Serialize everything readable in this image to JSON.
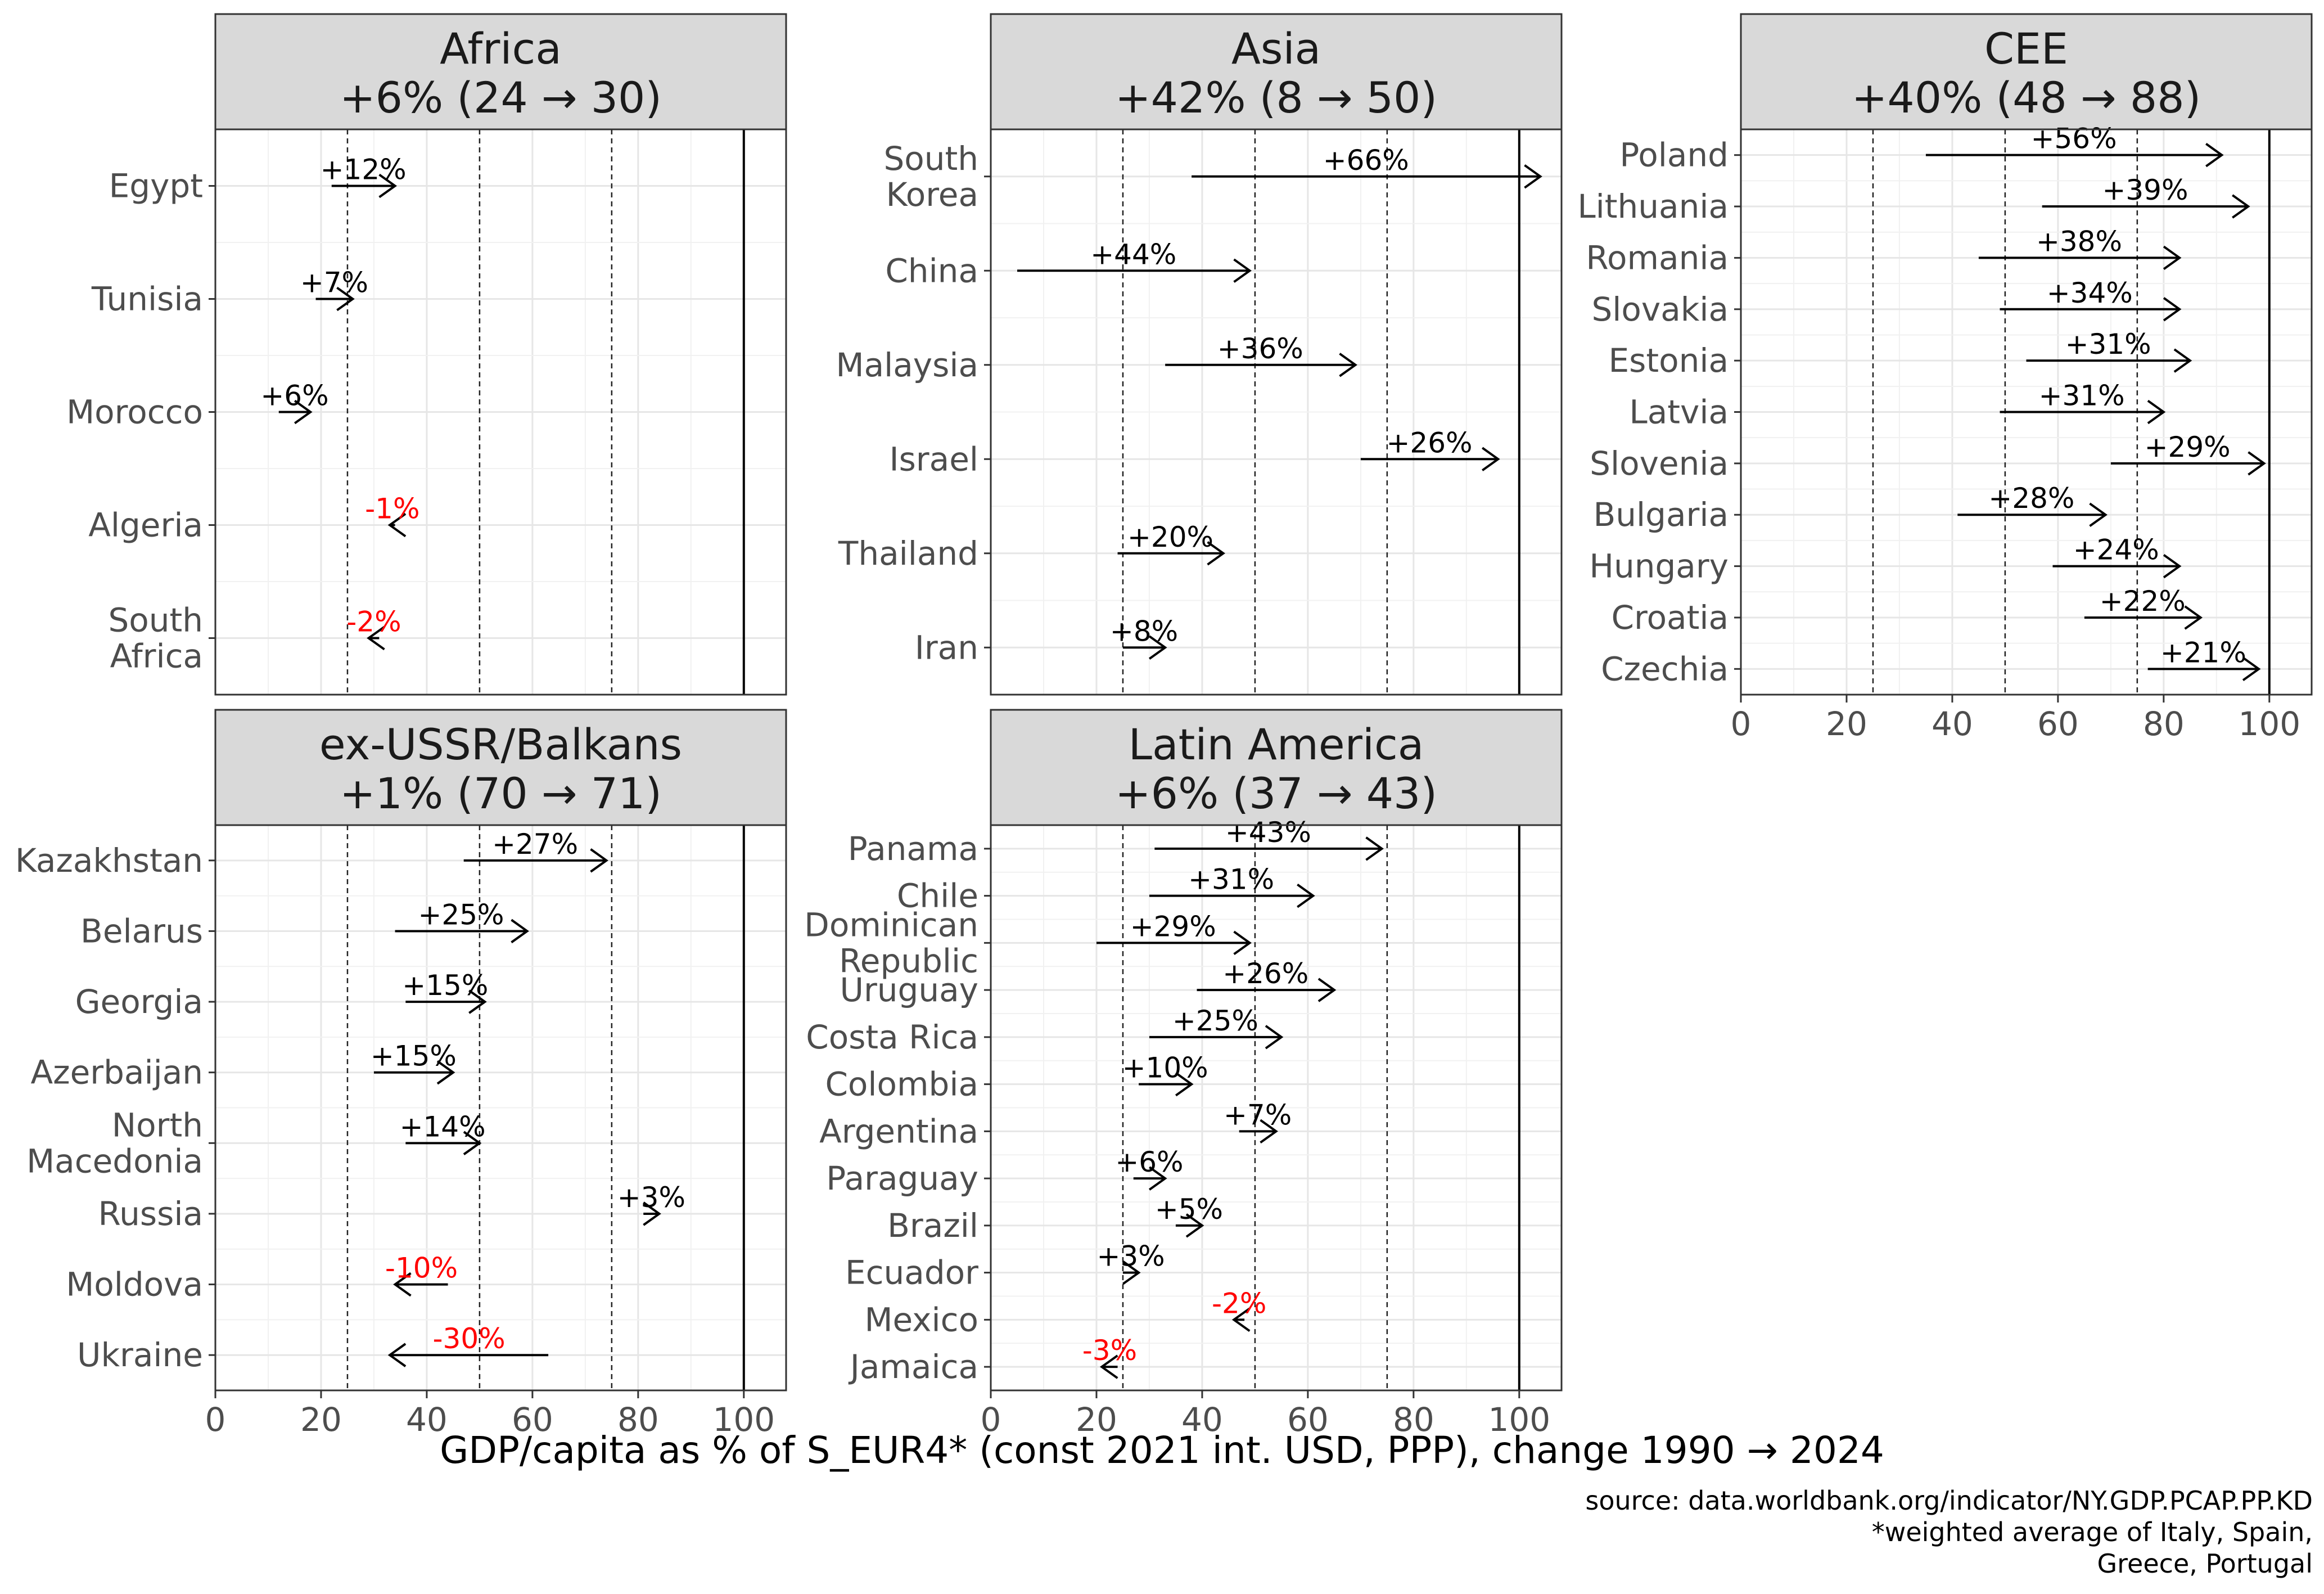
{
  "chart_data": {
    "type": "arrow-dumbbell (small multiples)",
    "xlabel": "GDP/capita as % of S_EUR4* (const 2021 int. USD, PPP), change 1990 → 2024",
    "x_ticks": [
      0,
      20,
      40,
      60,
      80,
      100
    ],
    "xlim": [
      0,
      108
    ],
    "reference_lines": {
      "dashed": [
        25,
        50,
        75
      ],
      "solid": [
        100
      ]
    },
    "source_lines": [
      "source: data.worldbank.org/indicator/NY.GDP.PCAP.PP.KD",
      "*weighted average of Italy, Spain,",
      "Greece, Portugal"
    ],
    "panels": [
      {
        "title": "Africa",
        "summary": "+6% (24 → 30)",
        "countries": [
          {
            "name": "Egypt",
            "start": 22,
            "end": 34,
            "label": "+12%"
          },
          {
            "name": "Tunisia",
            "start": 19,
            "end": 26,
            "label": "+7%"
          },
          {
            "name": "Morocco",
            "start": 12,
            "end": 18,
            "label": "+6%"
          },
          {
            "name": "Algeria",
            "start": 34,
            "end": 33,
            "label": "-1%"
          },
          {
            "name": "South\nAfrica",
            "start": 31,
            "end": 29,
            "label": "-2%"
          }
        ]
      },
      {
        "title": "Asia",
        "summary": "+42% (8 → 50)",
        "countries": [
          {
            "name": "South\nKorea",
            "start": 38,
            "end": 104,
            "label": "+66%"
          },
          {
            "name": "China",
            "start": 5,
            "end": 49,
            "label": "+44%"
          },
          {
            "name": "Malaysia",
            "start": 33,
            "end": 69,
            "label": "+36%"
          },
          {
            "name": "Israel",
            "start": 70,
            "end": 96,
            "label": "+26%"
          },
          {
            "name": "Thailand",
            "start": 24,
            "end": 44,
            "label": "+20%"
          },
          {
            "name": "Iran",
            "start": 25,
            "end": 33,
            "label": "+8%"
          }
        ]
      },
      {
        "title": "CEE",
        "summary": "+40% (48 → 88)",
        "countries": [
          {
            "name": "Poland",
            "start": 35,
            "end": 91,
            "label": "+56%"
          },
          {
            "name": "Lithuania",
            "start": 57,
            "end": 96,
            "label": "+39%"
          },
          {
            "name": "Romania",
            "start": 45,
            "end": 83,
            "label": "+38%"
          },
          {
            "name": "Slovakia",
            "start": 49,
            "end": 83,
            "label": "+34%"
          },
          {
            "name": "Estonia",
            "start": 54,
            "end": 85,
            "label": "+31%"
          },
          {
            "name": "Latvia",
            "start": 49,
            "end": 80,
            "label": "+31%"
          },
          {
            "name": "Slovenia",
            "start": 70,
            "end": 99,
            "label": "+29%"
          },
          {
            "name": "Bulgaria",
            "start": 41,
            "end": 69,
            "label": "+28%"
          },
          {
            "name": "Hungary",
            "start": 59,
            "end": 83,
            "label": "+24%"
          },
          {
            "name": "Croatia",
            "start": 65,
            "end": 87,
            "label": "+22%"
          },
          {
            "name": "Czechia",
            "start": 77,
            "end": 98,
            "label": "+21%"
          }
        ]
      },
      {
        "title": "ex-USSR/Balkans",
        "summary": "+1% (70 → 71)",
        "countries": [
          {
            "name": "Kazakhstan",
            "start": 47,
            "end": 74,
            "label": "+27%"
          },
          {
            "name": "Belarus",
            "start": 34,
            "end": 59,
            "label": "+25%"
          },
          {
            "name": "Georgia",
            "start": 36,
            "end": 51,
            "label": "+15%"
          },
          {
            "name": "Azerbaijan",
            "start": 30,
            "end": 45,
            "label": "+15%"
          },
          {
            "name": "North\nMacedonia",
            "start": 36,
            "end": 50,
            "label": "+14%"
          },
          {
            "name": "Russia",
            "start": 81,
            "end": 84,
            "label": "+3%"
          },
          {
            "name": "Moldova",
            "start": 44,
            "end": 34,
            "label": "-10%"
          },
          {
            "name": "Ukraine",
            "start": 63,
            "end": 33,
            "label": "-30%"
          }
        ]
      },
      {
        "title": "Latin America",
        "summary": "+6% (37 → 43)",
        "countries": [
          {
            "name": "Panama",
            "start": 31,
            "end": 74,
            "label": "+43%"
          },
          {
            "name": "Chile",
            "start": 30,
            "end": 61,
            "label": "+31%"
          },
          {
            "name": "Dominican\nRepublic",
            "start": 20,
            "end": 49,
            "label": "+29%"
          },
          {
            "name": "Uruguay",
            "start": 39,
            "end": 65,
            "label": "+26%"
          },
          {
            "name": "Costa Rica",
            "start": 30,
            "end": 55,
            "label": "+25%"
          },
          {
            "name": "Colombia",
            "start": 28,
            "end": 38,
            "label": "+10%"
          },
          {
            "name": "Argentina",
            "start": 47,
            "end": 54,
            "label": "+7%"
          },
          {
            "name": "Paraguay",
            "start": 27,
            "end": 33,
            "label": "+6%"
          },
          {
            "name": "Brazil",
            "start": 35,
            "end": 40,
            "label": "+5%"
          },
          {
            "name": "Ecuador",
            "start": 25,
            "end": 28,
            "label": "+3%"
          },
          {
            "name": "Mexico",
            "start": 48,
            "end": 46,
            "label": "-2%"
          },
          {
            "name": "Jamaica",
            "start": 24,
            "end": 21,
            "label": "-3%"
          }
        ]
      }
    ]
  }
}
